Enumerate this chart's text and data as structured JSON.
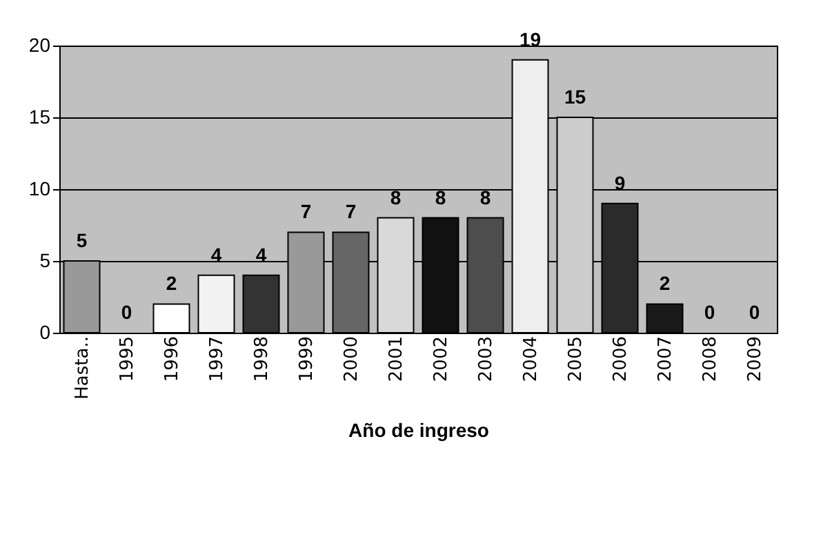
{
  "chart_data": {
    "type": "bar",
    "xlabel": "Año de ingreso",
    "categories": [
      "Hasta..",
      "1995",
      "1996",
      "1997",
      "1998",
      "1999",
      "2000",
      "2001",
      "2002",
      "2003",
      "2004",
      "2005",
      "2006",
      "2007",
      "2008",
      "2009"
    ],
    "values": [
      5,
      0,
      2,
      4,
      4,
      7,
      7,
      8,
      8,
      8,
      19,
      15,
      9,
      2,
      0,
      0
    ],
    "colors": [
      "#999999",
      "#999999",
      "#ffffff",
      "#f2f2f2",
      "#333333",
      "#999999",
      "#666666",
      "#d9d9d9",
      "#111111",
      "#4d4d4d",
      "#eeeeee",
      "#cccccc",
      "#2b2b2b",
      "#1a1a1a",
      "#808080",
      "#808080"
    ],
    "ylim": [
      0,
      20
    ],
    "yticks": [
      0,
      5,
      10,
      15,
      20
    ],
    "grid": "y",
    "data_labels": true
  }
}
